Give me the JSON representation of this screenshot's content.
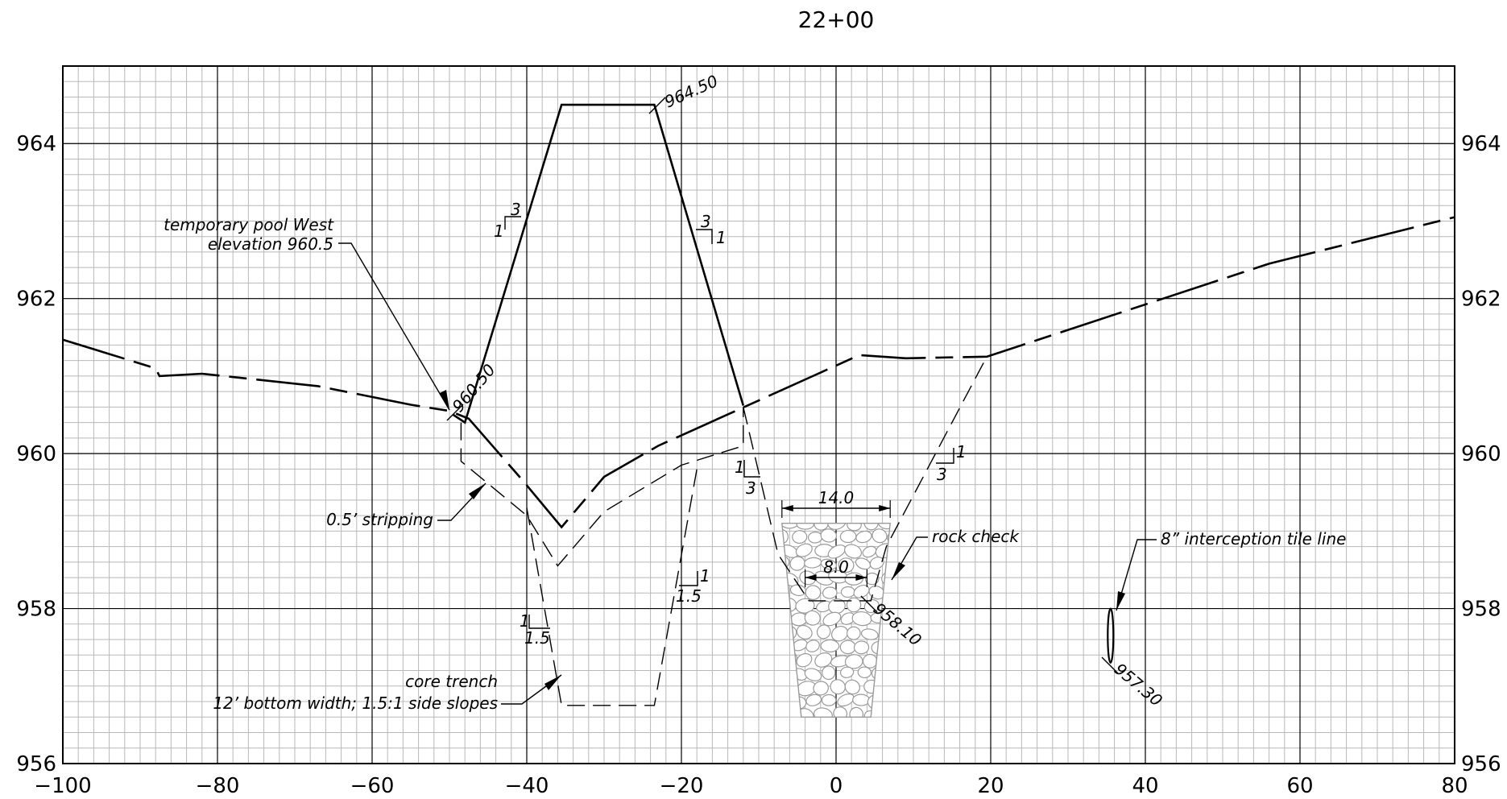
{
  "title": "22+00",
  "x_axis": {
    "min": -100,
    "max": 80,
    "ticks": [
      "−100",
      "−80",
      "−60",
      "−40",
      "−20",
      "0",
      "20",
      "40",
      "60",
      "80"
    ]
  },
  "y_axis": {
    "min": 956,
    "max": 965,
    "ticks": [
      "956",
      "958",
      "960",
      "962",
      "964"
    ]
  },
  "grid": {
    "minor_x": 2,
    "minor_y": 0.2,
    "major_x": 20,
    "major_y": 2,
    "minor_color": "#b8b8b8",
    "major_color": "#000000"
  },
  "profiles": {
    "existing_ground": [
      [
        -100,
        961.47
      ],
      [
        -88,
        961.1
      ],
      [
        -87.5,
        961.0
      ],
      [
        -82,
        961.03
      ],
      [
        -67,
        960.87
      ],
      [
        -55,
        960.63
      ],
      [
        -50,
        960.55
      ],
      [
        -47.5,
        960.45
      ],
      [
        -40.5,
        959.65
      ],
      [
        -35.5,
        959.05
      ],
      [
        -30,
        959.7
      ],
      [
        -23,
        960.1
      ],
      [
        3,
        961.27
      ],
      [
        9,
        961.23
      ],
      [
        19.5,
        961.25
      ],
      [
        56,
        962.45
      ],
      [
        80,
        963.05
      ]
    ],
    "embankment": [
      [
        -49.5,
        960.5
      ],
      [
        -48,
        960.4
      ],
      [
        -35.5,
        964.5
      ],
      [
        -23.5,
        964.5
      ],
      [
        -12,
        960.62
      ]
    ],
    "stripping": [
      [
        -48.5,
        960.4
      ],
      [
        -48.5,
        959.9
      ],
      [
        -40,
        959.2
      ],
      [
        -36,
        958.55
      ],
      [
        -30,
        959.25
      ],
      [
        -20,
        959.85
      ],
      [
        -12,
        960.1
      ],
      [
        -12,
        960.6
      ]
    ],
    "core_trench": [
      [
        -40,
        959.3
      ],
      [
        -35.5,
        956.75
      ],
      [
        -23.5,
        956.75
      ],
      [
        -18,
        959.8
      ]
    ],
    "ditch": [
      [
        -12,
        960.6
      ],
      [
        -7.5,
        958.7
      ],
      [
        -3.5,
        958.1
      ],
      [
        4.5,
        958.1
      ],
      [
        6.5,
        958.8
      ],
      [
        19.5,
        961.25
      ]
    ],
    "tile_line": {
      "x": 35.5,
      "y_top": 958.0,
      "y_bottom": 957.3
    }
  },
  "rock_check": {
    "top_left": -7,
    "top_right": 7,
    "bottom_left": -4.5,
    "bottom_right": 4.5,
    "top": 959.1,
    "bottom": 956.6
  },
  "dimensions": [
    {
      "label": "14.0",
      "x1": -7,
      "x2": 7,
      "y": 958.35
    },
    {
      "label": "8.0",
      "x1": -4,
      "x2": 4,
      "y": 957.05
    }
  ],
  "slope_marks": [
    {
      "rise": "1",
      "run": "3"
    },
    {
      "rise": "3",
      "run": "1"
    },
    {
      "rise": "1",
      "run": "3"
    },
    {
      "rise": "3",
      "run": "1"
    },
    {
      "rise": "1",
      "run": "1.5"
    },
    {
      "rise": "1",
      "run": "1.5"
    }
  ],
  "elevation_labels": [
    "964.50",
    "960.50",
    "958.10",
    "957.30"
  ],
  "annotations": {
    "pool_line1": "temporary pool West",
    "pool_line2": "elevation 960.5",
    "stripping": "0.5’ stripping",
    "core_line1": "core trench",
    "core_line2": "12’ bottom width; 1.5:1 side slopes",
    "rock_check": "rock check",
    "tile": "8” interception tile line"
  }
}
